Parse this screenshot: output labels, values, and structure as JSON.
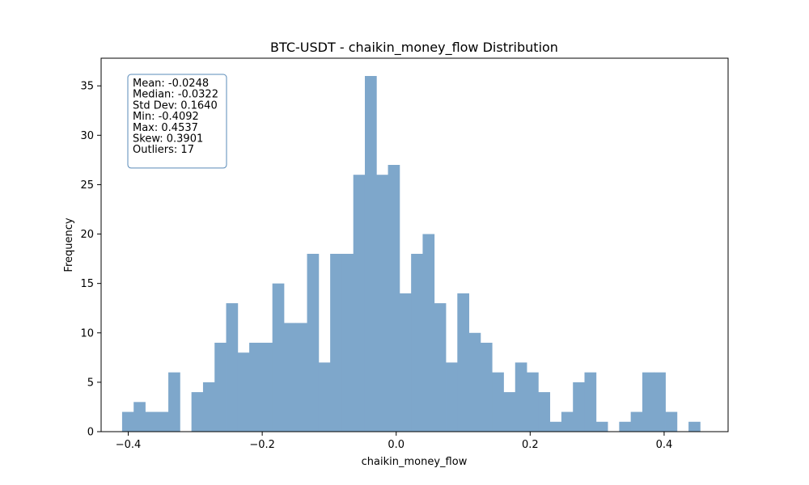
{
  "chart_data": {
    "type": "bar",
    "title": "BTC-USDT - chaikin_money_flow Distribution",
    "xlabel": "chaikin_money_flow",
    "ylabel": "Frequency",
    "xlim": [
      -0.4405,
      0.4955
    ],
    "ylim": [
      0,
      37.8
    ],
    "bin_start": -0.4092,
    "bin_end": 0.4537,
    "counts": [
      2,
      3,
      2,
      2,
      6,
      0,
      4,
      5,
      9,
      13,
      8,
      9,
      9,
      15,
      11,
      11,
      18,
      7,
      18,
      18,
      26,
      36,
      26,
      27,
      14,
      18,
      20,
      13,
      7,
      14,
      10,
      9,
      6,
      4,
      7,
      6,
      4,
      1,
      2,
      5,
      6,
      1,
      0,
      1,
      2,
      6,
      6,
      2,
      0,
      1
    ],
    "x_ticks": [
      -0.4,
      -0.2,
      0.0,
      0.2,
      0.4
    ],
    "x_tick_labels": [
      "−0.4",
      "−0.2",
      "0.0",
      "0.2",
      "0.4"
    ],
    "y_ticks": [
      0,
      5,
      10,
      15,
      20,
      25,
      30,
      35
    ],
    "y_tick_labels": [
      "0",
      "5",
      "10",
      "15",
      "20",
      "25",
      "30",
      "35"
    ],
    "bar_color": "#7ea7cb",
    "grid": false,
    "stats_box": {
      "placement": "top-left",
      "edge_color": "#5a8bb8",
      "lines": [
        "Mean: -0.0248",
        "Median: -0.0322",
        "Std Dev: 0.1640",
        "Min: -0.4092",
        "Max: 0.4537",
        "Skew: 0.3901",
        "Outliers: 17"
      ]
    }
  }
}
